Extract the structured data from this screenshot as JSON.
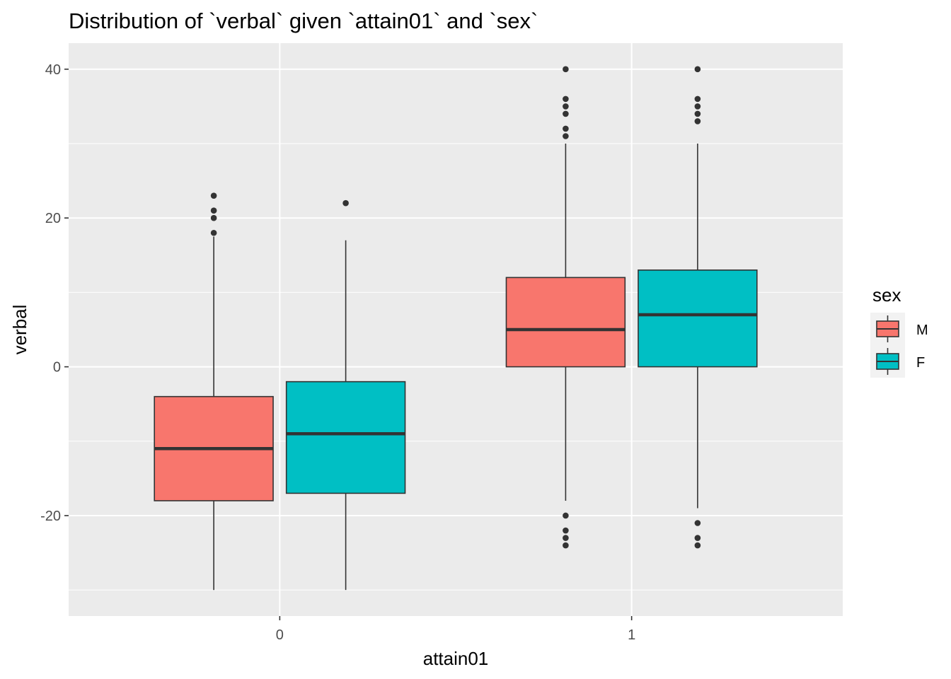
{
  "chart_data": {
    "type": "boxplot",
    "title": "Distribution of `verbal` given `attain01` and `sex`",
    "xlabel": "attain01",
    "ylabel": "verbal",
    "categories": [
      "0",
      "1"
    ],
    "ylim": [
      -33.5,
      43.5
    ],
    "yticks": [
      -20,
      0,
      20,
      40
    ],
    "grid": true,
    "legend": {
      "title": "sex",
      "position": "right"
    },
    "colors": {
      "M": "#F8766D",
      "F": "#00BFC4",
      "panel": "#EBEBEB",
      "grid": "#FFFFFF",
      "outline": "#333333"
    },
    "series": [
      {
        "name": "M",
        "boxes": [
          {
            "category": "0",
            "whisker_low": -30,
            "q1": -18,
            "median": -11,
            "q3": -4,
            "whisker_high": 17.5,
            "outliers": [
              18,
              20,
              21,
              23
            ]
          },
          {
            "category": "1",
            "whisker_low": -18,
            "q1": 0,
            "median": 5,
            "q3": 12,
            "whisker_high": 30,
            "outliers": [
              -24,
              -23,
              -22,
              -20,
              31,
              32,
              34,
              35,
              36,
              40
            ]
          }
        ]
      },
      {
        "name": "F",
        "boxes": [
          {
            "category": "0",
            "whisker_low": -30,
            "q1": -17,
            "median": -9,
            "q3": -2,
            "whisker_high": 17,
            "outliers": [
              22
            ]
          },
          {
            "category": "1",
            "whisker_low": -19,
            "q1": 0,
            "median": 7,
            "q3": 13,
            "whisker_high": 30,
            "outliers": [
              -24,
              -23,
              -21,
              33,
              34,
              35,
              36,
              40
            ]
          }
        ]
      }
    ]
  }
}
